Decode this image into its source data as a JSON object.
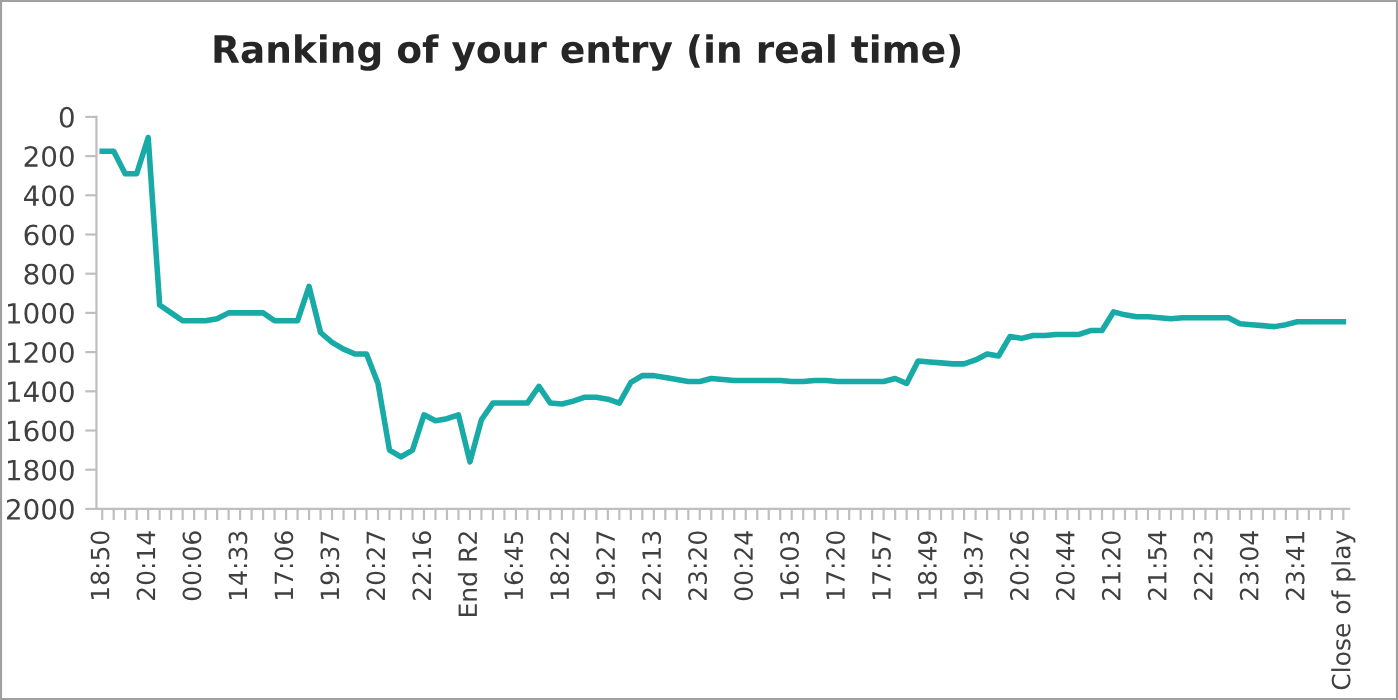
{
  "chart_data": {
    "type": "line",
    "title": "Ranking of your entry (in real time)",
    "categories": [
      "18:50",
      null,
      null,
      null,
      "20:14",
      null,
      null,
      null,
      "00:06",
      null,
      null,
      null,
      "14:33",
      null,
      null,
      null,
      "17:06",
      null,
      null,
      null,
      "19:37",
      null,
      null,
      null,
      "20:27",
      null,
      null,
      null,
      "22:16",
      null,
      null,
      null,
      "End R2",
      null,
      null,
      null,
      "16:45",
      null,
      null,
      null,
      "18:22",
      null,
      null,
      null,
      "19:27",
      null,
      null,
      null,
      "22:13",
      null,
      null,
      null,
      "23:20",
      null,
      null,
      null,
      "00:24",
      null,
      null,
      null,
      "16:03",
      null,
      null,
      null,
      "17:20",
      null,
      null,
      null,
      "17:57",
      null,
      null,
      null,
      "18:49",
      null,
      null,
      null,
      "19:37",
      null,
      null,
      null,
      "20:26",
      null,
      null,
      null,
      "20:44",
      null,
      null,
      null,
      "21:20",
      null,
      null,
      null,
      "21:54",
      null,
      null,
      null,
      "22:23",
      null,
      null,
      null,
      "23:04",
      null,
      null,
      null,
      "23:41",
      null,
      null,
      null,
      "Close of play"
    ],
    "series": [
      {
        "color": "#17aaa6",
        "values": [
          175,
          175,
          290,
          290,
          105,
          960,
          1000,
          1040,
          1040,
          1040,
          1030,
          1000,
          1000,
          1000,
          1000,
          1040,
          1040,
          1040,
          865,
          1100,
          1150,
          1185,
          1210,
          1210,
          1360,
          1700,
          1735,
          1700,
          1520,
          1550,
          1540,
          1520,
          1760,
          1545,
          1460,
          1460,
          1460,
          1460,
          1375,
          1460,
          1465,
          1450,
          1430,
          1430,
          1440,
          1460,
          1355,
          1320,
          1320,
          1330,
          1340,
          1350,
          1350,
          1335,
          1340,
          1345,
          1345,
          1345,
          1345,
          1345,
          1350,
          1350,
          1345,
          1345,
          1350,
          1350,
          1350,
          1350,
          1350,
          1335,
          1360,
          1245,
          1250,
          1255,
          1260,
          1260,
          1240,
          1210,
          1220,
          1120,
          1130,
          1115,
          1115,
          1110,
          1110,
          1110,
          1090,
          1090,
          995,
          1010,
          1020,
          1020,
          1025,
          1030,
          1025,
          1025,
          1025,
          1025,
          1025,
          1055,
          1060,
          1065,
          1070,
          1060,
          1045,
          1045,
          1045,
          1045,
          1045
        ]
      }
    ],
    "ylim": [
      2000,
      0
    ],
    "yticks": [
      0,
      200,
      400,
      600,
      800,
      1000,
      1200,
      1400,
      1600,
      1800,
      2000
    ],
    "grid": false,
    "marker": "none",
    "line_style": "solid"
  }
}
